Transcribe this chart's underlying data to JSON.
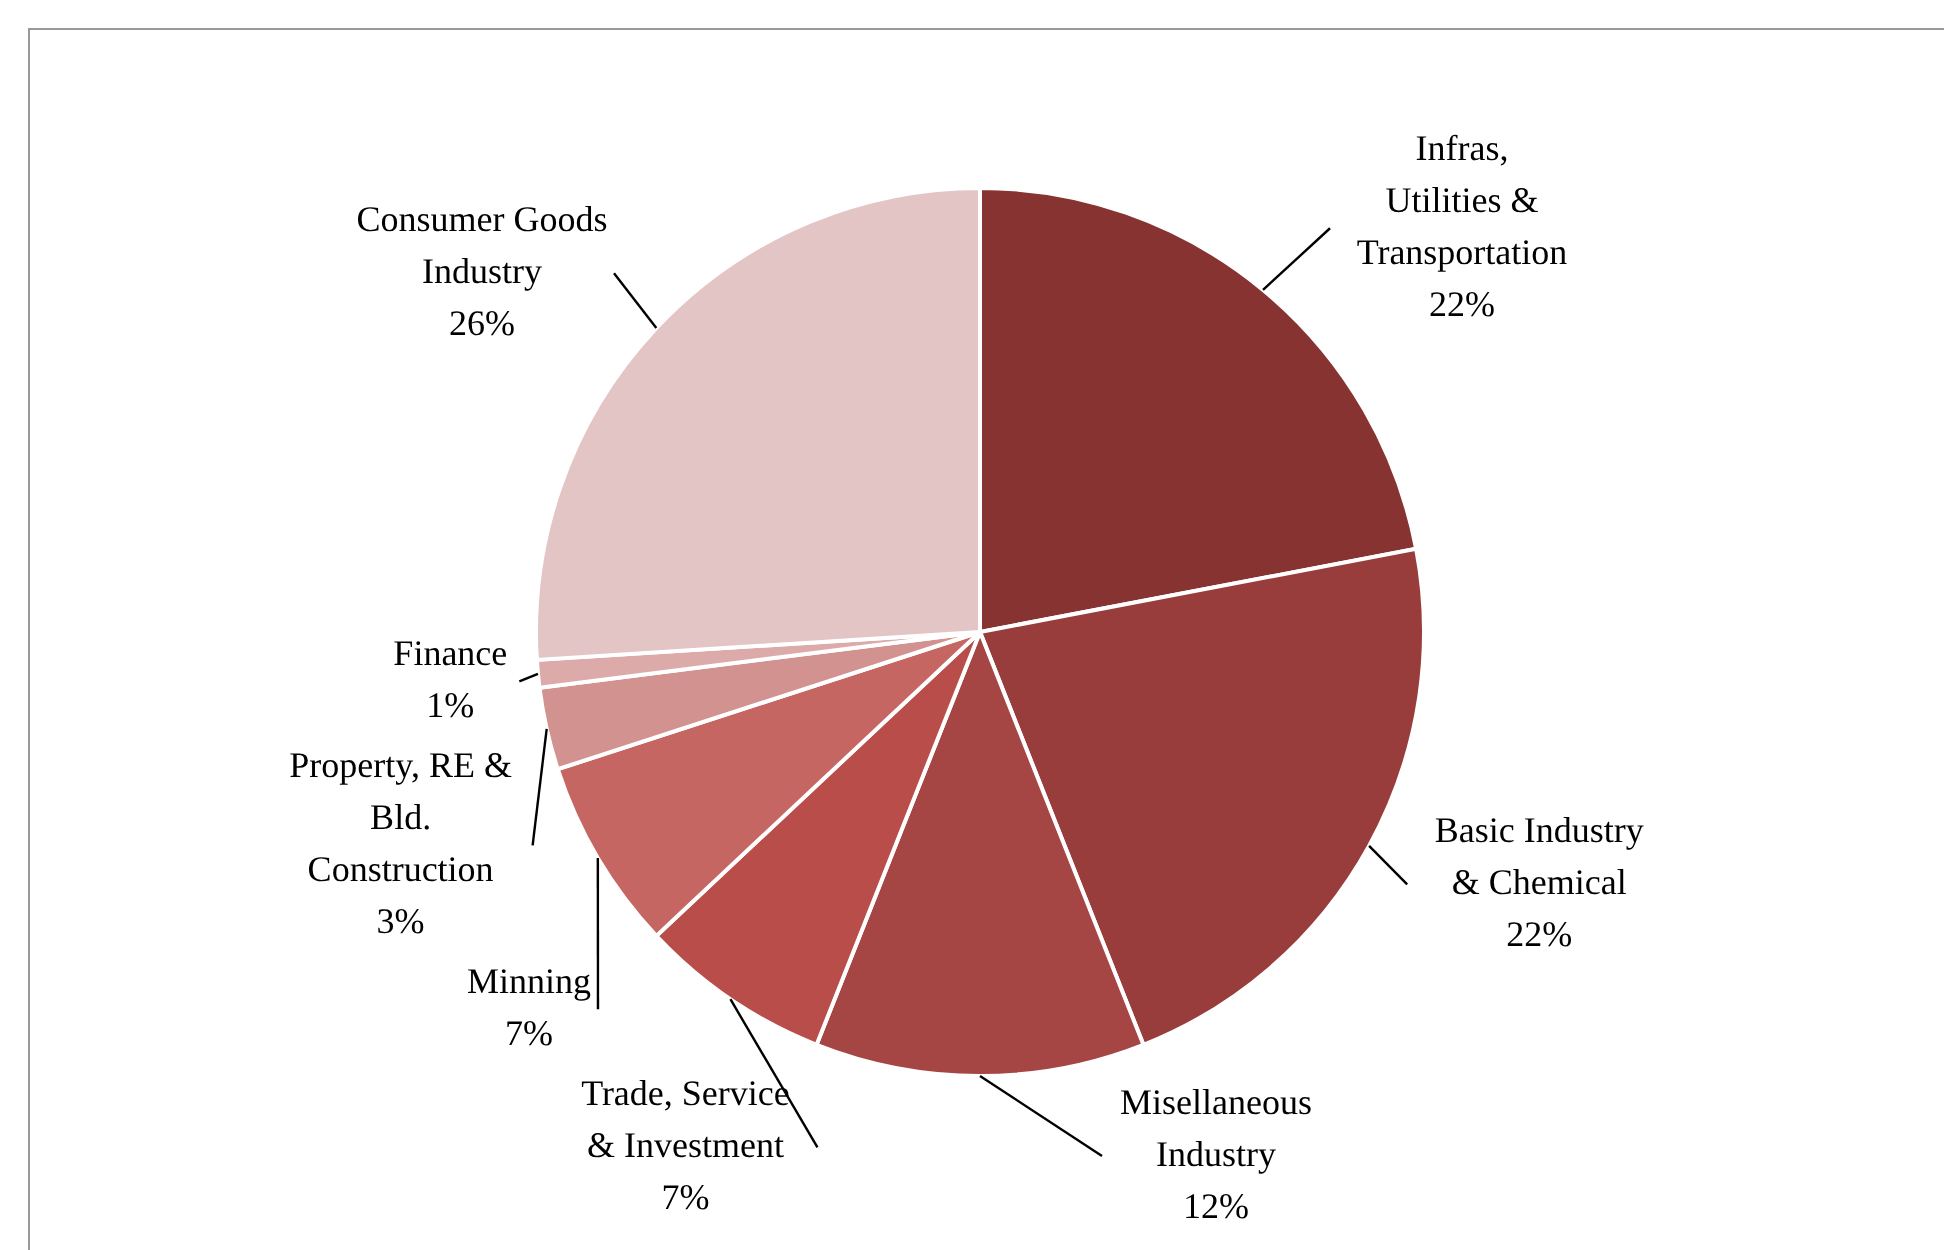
{
  "chart_data": {
    "type": "pie",
    "categories": [
      "Infras, Utilities & Transportation",
      "Basic Industry & Chemical",
      "Misellaneous Industry",
      "Trade, Service & Investment",
      "Minning",
      "Property, RE & Bld. Construction",
      "Finance",
      "Consumer Goods Industry"
    ],
    "values": [
      22,
      22,
      12,
      7,
      7,
      3,
      1,
      26
    ],
    "value_labels": [
      "22%",
      "22%",
      "12%",
      "7%",
      "7%",
      "3%",
      "1%",
      "26%"
    ],
    "colors": [
      "#873331",
      "#983d3b",
      "#a54544",
      "#b84d4a",
      "#c56663",
      "#d29290",
      "#dbaaa9",
      "#e4c5c6"
    ]
  }
}
